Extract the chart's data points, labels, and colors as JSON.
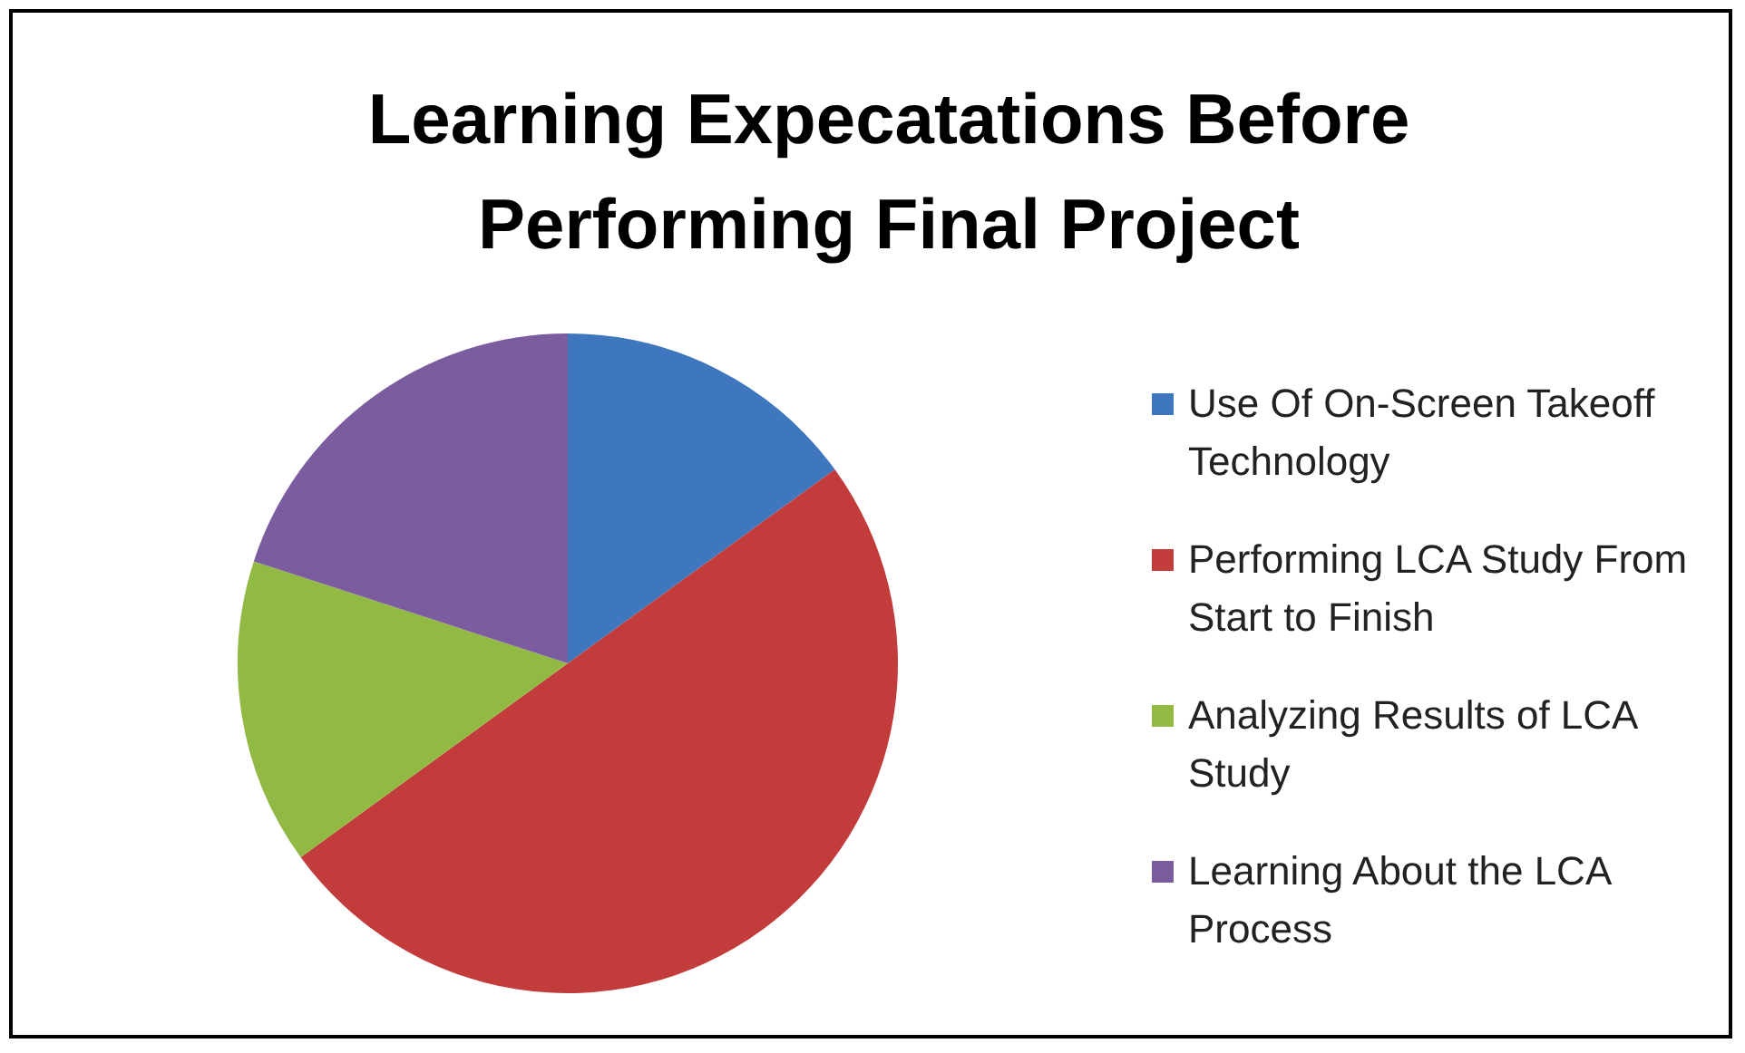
{
  "chart_data": {
    "type": "pie",
    "title": "Learning Expecatations Before Performing Final Project",
    "categories": [
      "Use Of On-Screen Takeoff Technology",
      "Performing LCA Study From Start to Finish",
      "Analyzing Results of LCA Study",
      "Learning About the LCA Process"
    ],
    "values": [
      15,
      50,
      15,
      20
    ],
    "colors": [
      "#3f77be",
      "#c13c3a",
      "#93b945",
      "#7a5c9f"
    ],
    "legend": "right"
  }
}
